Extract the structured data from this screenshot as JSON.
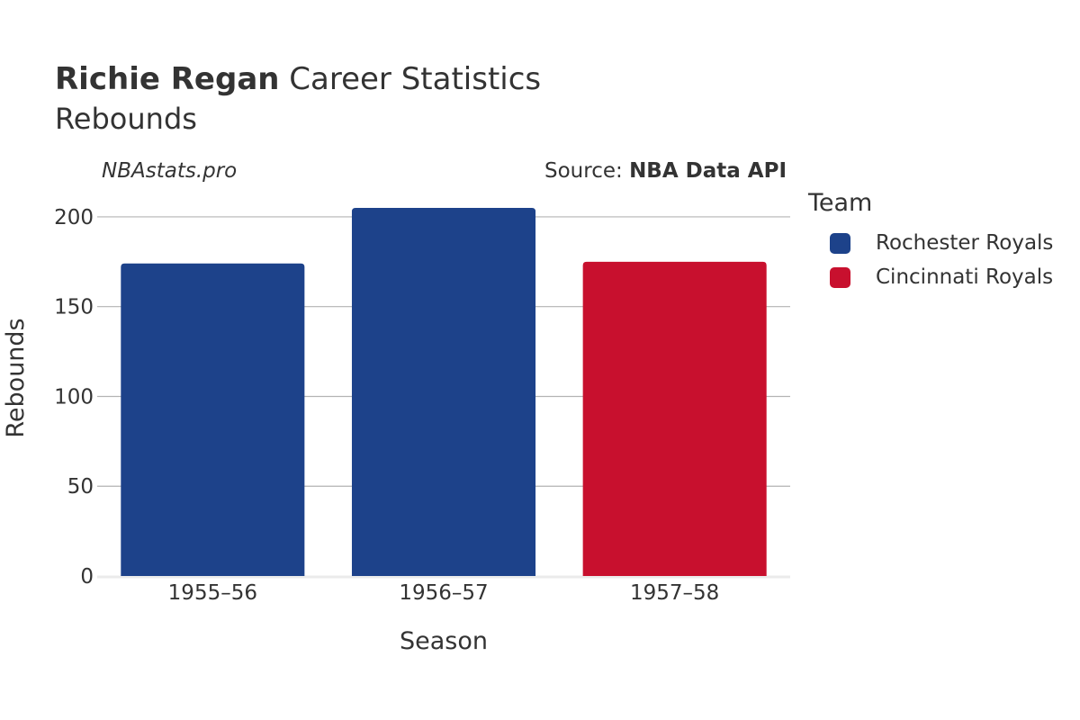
{
  "header": {
    "title_bold": "Richie Regan",
    "title_rest": " Career Statistics",
    "subtitle": "Rebounds",
    "watermark": "NBAstats.pro",
    "source_prefix": "Source: ",
    "source_name": "NBA Data API"
  },
  "legend": {
    "title": "Team",
    "items": [
      {
        "label": "Rochester Royals",
        "color": "#1d428a"
      },
      {
        "label": "Cincinnati Royals",
        "color": "#c8102e"
      }
    ]
  },
  "chart_data": {
    "type": "bar",
    "categories": [
      "1955–56",
      "1956–57",
      "1957–58"
    ],
    "values": [
      174,
      205,
      175
    ],
    "bar_teams": [
      "Rochester Royals",
      "Rochester Royals",
      "Cincinnati Royals"
    ],
    "bar_colors": [
      "#1d428a",
      "#1d428a",
      "#c8102e"
    ],
    "xlabel": "Season",
    "ylabel": "Rebounds",
    "ylim": [
      0,
      215
    ],
    "yticks": [
      0,
      50,
      100,
      150,
      200
    ],
    "grid": true,
    "legend_position": "right"
  }
}
